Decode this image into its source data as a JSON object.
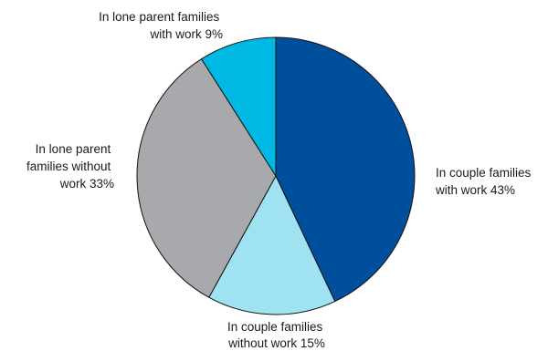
{
  "chart_data": {
    "type": "pie",
    "slices": [
      {
        "label_lines": [
          "In couple families",
          "with work 43%"
        ],
        "value": 43,
        "color": "#004f9c"
      },
      {
        "label_lines": [
          "In couple families",
          "without work 15%"
        ],
        "value": 15,
        "color": "#9fe3f3"
      },
      {
        "label_lines": [
          "In lone parent",
          "families without",
          "work 33%"
        ],
        "value": 33,
        "color": "#a7a9ac"
      },
      {
        "label_lines": [
          "In lone parent families",
          "with work 9%"
        ],
        "value": 9,
        "color": "#00b8e4"
      }
    ]
  }
}
